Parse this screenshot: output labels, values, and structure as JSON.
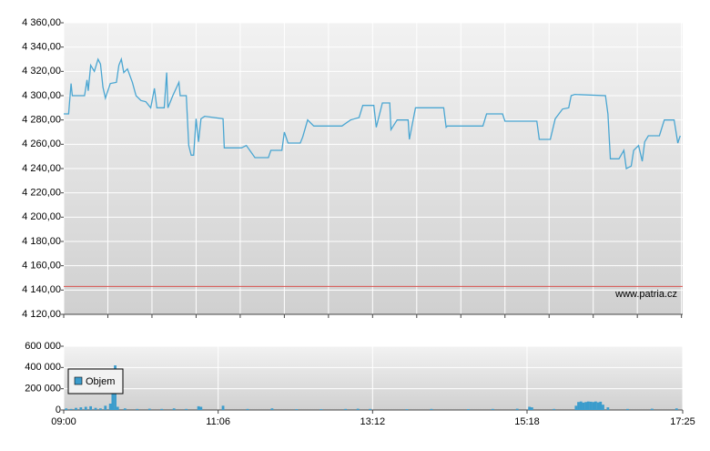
{
  "chart_data": [
    {
      "type": "line",
      "x": [
        "09:00",
        "09:04",
        "09:06",
        "09:07",
        "09:17",
        "09:19",
        "09:20",
        "09:22",
        "09:25",
        "09:28",
        "09:30",
        "09:32",
        "09:34",
        "09:36",
        "09:38",
        "09:43",
        "09:45",
        "09:47",
        "09:49",
        "09:52",
        "09:56",
        "09:59",
        "10:03",
        "10:07",
        "10:11",
        "10:14",
        "10:16",
        "10:22",
        "10:24",
        "10:25",
        "10:29",
        "10:34",
        "10:35",
        "10:40",
        "10:42",
        "10:44",
        "10:46",
        "10:48",
        "10:50",
        "10:52",
        "10:55",
        "11:10",
        "11:11",
        "11:25",
        "11:29",
        "11:36",
        "11:47",
        "11:49",
        "11:58",
        "12:00",
        "12:03",
        "12:13",
        "12:15",
        "12:19",
        "12:24",
        "12:47",
        "12:54",
        "13:01",
        "13:04",
        "13:13",
        "13:15",
        "13:20",
        "13:26",
        "13:27",
        "13:32",
        "13:41",
        "13:42",
        "13:47",
        "14:10",
        "14:12",
        "14:13",
        "14:42",
        "14:45",
        "14:58",
        "15:00",
        "15:26",
        "15:28",
        "15:37",
        "15:41",
        "15:47",
        "15:52",
        "15:54",
        "15:57",
        "16:22",
        "16:24",
        "16:26",
        "16:33",
        "16:37",
        "16:39",
        "16:43",
        "16:45",
        "16:49",
        "16:52",
        "16:54",
        "16:57",
        "17:06",
        "17:10",
        "17:18",
        "17:21",
        "17:23"
      ],
      "series": [
        {
          "color": "#4aa6d2",
          "values": [
            4285,
            4285,
            4310,
            4300,
            4300,
            4313,
            4304,
            4325,
            4320,
            4330,
            4326,
            4307,
            4298,
            4304,
            4310,
            4311,
            4325,
            4330,
            4319,
            4322,
            4311,
            4300,
            4296,
            4295,
            4290,
            4306,
            4290,
            4290,
            4319,
            4290,
            4300,
            4311,
            4300,
            4300,
            4259,
            4251,
            4251,
            4281,
            4262,
            4281,
            4283,
            4281,
            4257,
            4257,
            4259,
            4249,
            4249,
            4255,
            4255,
            4270,
            4261,
            4261,
            4266,
            4280,
            4275,
            4275,
            4280,
            4282,
            4292,
            4292,
            4274,
            4294,
            4294,
            4272,
            4280,
            4280,
            4264,
            4290,
            4290,
            4274,
            4275,
            4275,
            4285,
            4285,
            4279,
            4279,
            4264,
            4264,
            4281,
            4289,
            4290,
            4300,
            4301,
            4300,
            4285,
            4248,
            4248,
            4255,
            4240,
            4242,
            4255,
            4259,
            4246,
            4262,
            4267,
            4267,
            4280,
            4280,
            4261,
            4267
          ]
        }
      ],
      "reference_line": {
        "value": 4143,
        "color": "#d9534f"
      },
      "annotation": "www.patria.cz",
      "xlim": [
        "09:00",
        "17:25"
      ],
      "minor_xticks": [
        "09:00",
        "09:36",
        "10:12",
        "10:48",
        "11:24",
        "12:00",
        "12:36",
        "13:12",
        "13:48",
        "14:24",
        "15:00",
        "15:36",
        "16:12",
        "16:48",
        "17:24"
      ],
      "ylim": [
        4120,
        4360
      ],
      "yticks": [
        {
          "value": 4120,
          "label": "4 120,00"
        },
        {
          "value": 4140,
          "label": "4 140,00"
        },
        {
          "value": 4160,
          "label": "4 160,00"
        },
        {
          "value": 4180,
          "label": "4 180,00"
        },
        {
          "value": 4200,
          "label": "4 200,00"
        },
        {
          "value": 4220,
          "label": "4 220,00"
        },
        {
          "value": 4240,
          "label": "4 240,00"
        },
        {
          "value": 4260,
          "label": "4 260,00"
        },
        {
          "value": 4280,
          "label": "4 280,00"
        },
        {
          "value": 4300,
          "label": "4 300,00"
        },
        {
          "value": 4320,
          "label": "4 320,00"
        },
        {
          "value": 4340,
          "label": "4 340,00"
        },
        {
          "value": 4360,
          "label": "4 360,00"
        }
      ],
      "grid": true
    },
    {
      "type": "bar",
      "x": [
        "09:02",
        "09:06",
        "09:10",
        "09:14",
        "09:18",
        "09:22",
        "09:26",
        "09:30",
        "09:34",
        "09:38",
        "09:40",
        "09:42",
        "09:44",
        "09:50",
        "10:00",
        "10:10",
        "10:20",
        "10:30",
        "10:40",
        "10:50",
        "10:52",
        "11:10",
        "11:30",
        "11:50",
        "12:10",
        "12:30",
        "12:50",
        "13:00",
        "13:10",
        "13:40",
        "14:00",
        "14:30",
        "14:50",
        "15:10",
        "15:20",
        "15:22",
        "15:40",
        "15:58",
        "16:00",
        "16:02",
        "16:04",
        "16:06",
        "16:08",
        "16:10",
        "16:12",
        "16:14",
        "16:16",
        "16:18",
        "16:20",
        "16:24",
        "16:40",
        "17:00",
        "17:20"
      ],
      "series": [
        {
          "name": "Objem",
          "color": "#3b9ccc",
          "values": [
            15000,
            10000,
            20000,
            25000,
            30000,
            35000,
            20000,
            15000,
            40000,
            60000,
            350000,
            420000,
            30000,
            15000,
            10000,
            12000,
            10000,
            15000,
            10000,
            35000,
            30000,
            40000,
            10000,
            15000,
            8000,
            8000,
            10000,
            12000,
            10000,
            8000,
            10000,
            8000,
            10000,
            12000,
            30000,
            25000,
            10000,
            40000,
            75000,
            80000,
            70000,
            75000,
            80000,
            78000,
            75000,
            80000,
            72000,
            78000,
            50000,
            25000,
            10000,
            12000,
            15000
          ]
        }
      ],
      "legend": "upper-left",
      "xlim": [
        "09:00",
        "17:25"
      ],
      "xticks": [
        "09:00",
        "11:06",
        "13:12",
        "15:18",
        "17:25"
      ],
      "ylim": [
        0,
        600000
      ],
      "yticks": [
        0,
        {
          "value": 200000,
          "label": "200 000"
        },
        {
          "value": 400000,
          "label": "400 000"
        },
        {
          "value": 600000,
          "label": "600 000"
        }
      ],
      "grid": true
    }
  ]
}
